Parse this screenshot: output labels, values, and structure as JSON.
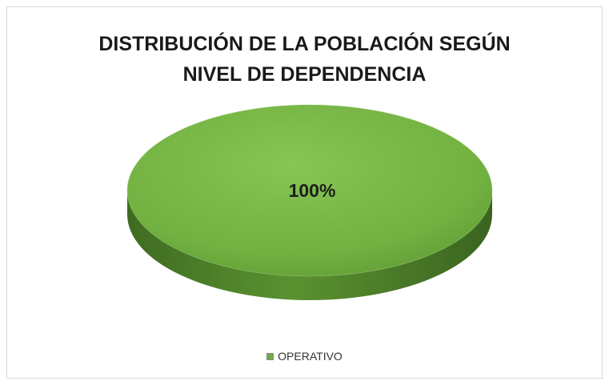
{
  "chart_data": {
    "type": "pie",
    "title": [
      "DISTRIBUCIÓN DE LA POBLACIÓN SEGÚN",
      "NIVEL DE DEPENDENCIA"
    ],
    "slices": [
      {
        "label": "OPERATIVO",
        "value": 100,
        "data_label": "100%",
        "color": "#70ad47"
      }
    ],
    "legend_position": "bottom",
    "style": "3d"
  },
  "colors": {
    "top_light": "#82c150",
    "top_dark": "#5e9a34",
    "side_light": "#5a9230",
    "side_dark": "#3b6420"
  }
}
